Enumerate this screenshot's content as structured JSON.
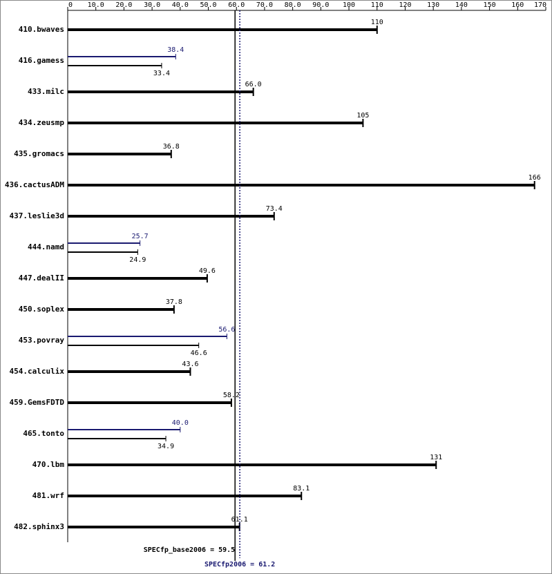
{
  "chart_data": {
    "type": "bar",
    "orientation": "horizontal",
    "categories": [
      "410.bwaves",
      "416.gamess",
      "433.milc",
      "434.zeusmp",
      "435.gromacs",
      "436.cactusADM",
      "437.leslie3d",
      "444.namd",
      "447.dealII",
      "450.soplex",
      "453.povray",
      "454.calculix",
      "459.GemsFDTD",
      "465.tonto",
      "470.lbm",
      "481.wrf",
      "482.sphinx3"
    ],
    "series": [
      {
        "color": "#000000",
        "values": [
          110,
          33.4,
          66.0,
          105,
          36.8,
          166,
          73.4,
          24.9,
          49.6,
          37.8,
          46.6,
          43.6,
          58.2,
          34.9,
          131,
          83.1,
          61.1
        ],
        "value_labels": [
          "110",
          "33.4",
          "66.0",
          "105",
          "36.8",
          "166",
          "73.4",
          "24.9",
          "49.6",
          "37.8",
          "46.6",
          "43.6",
          "58.2",
          "34.9",
          "131",
          "83.1",
          "61.1"
        ]
      },
      {
        "color": "#191970",
        "values": [
          null,
          38.4,
          null,
          null,
          null,
          null,
          null,
          25.7,
          null,
          null,
          56.6,
          null,
          null,
          40.0,
          null,
          null,
          null
        ],
        "value_labels": [
          null,
          "38.4",
          null,
          null,
          null,
          null,
          null,
          "25.7",
          null,
          null,
          "56.6",
          null,
          null,
          "40.0",
          null,
          null,
          null
        ]
      }
    ],
    "xlim": [
      0,
      170
    ],
    "xticks": [
      0,
      {
        "value": 10,
        "label": "10.0"
      },
      {
        "value": 20,
        "label": "20.0"
      },
      {
        "value": 30,
        "label": "30.0"
      },
      {
        "value": 40,
        "label": "40.0"
      },
      {
        "value": 50,
        "label": "50.0"
      },
      {
        "value": 60,
        "label": "60.0"
      },
      {
        "value": 70,
        "label": "70.0"
      },
      {
        "value": 80,
        "label": "80.0"
      },
      {
        "value": 90,
        "label": "90.0"
      },
      100,
      110,
      120,
      130,
      140,
      150,
      160,
      170
    ],
    "reference_lines": [
      {
        "label": "SPECfp_base2006 = 59.5",
        "value": 59.5,
        "color": "#000000",
        "style": "solid"
      },
      {
        "label": "SPECfp2006 = 61.2",
        "value": 61.2,
        "color": "#191970",
        "style": "dotted"
      }
    ]
  }
}
